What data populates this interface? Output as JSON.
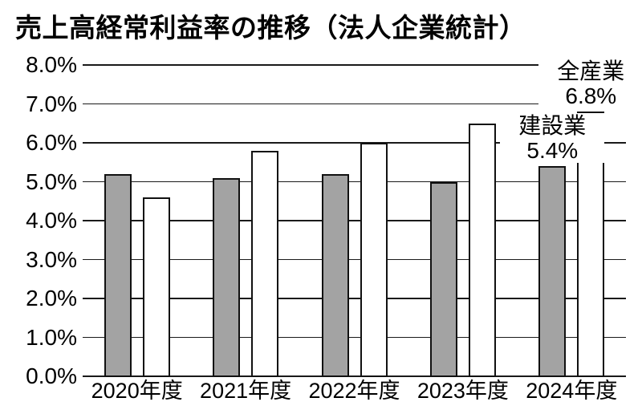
{
  "title": "売上高経常利益率の推移（法人企業統計）",
  "chart_data": {
    "type": "bar",
    "categories": [
      "2020年度",
      "2021年度",
      "2022年度",
      "2023年度",
      "2024年度"
    ],
    "series": [
      {
        "name": "建設業",
        "key": "construction",
        "fill": "#a3a3a3",
        "values": [
          5.2,
          5.1,
          5.2,
          5.0,
          5.4
        ]
      },
      {
        "name": "全産業",
        "key": "all-industries",
        "fill": "#ffffff",
        "values": [
          4.6,
          5.8,
          6.0,
          6.5,
          6.8
        ]
      }
    ],
    "ylim": [
      0,
      8
    ],
    "ytick_step": 1,
    "ytick_labels": [
      "0.0%",
      "1.0%",
      "2.0%",
      "3.0%",
      "4.0%",
      "5.0%",
      "6.0%",
      "7.0%",
      "8.0%"
    ],
    "grid": true,
    "legend": "none",
    "annotations": [
      {
        "series_index": 1,
        "category_index": 4,
        "name": "全産業",
        "value_label": "6.8%"
      },
      {
        "series_index": 0,
        "category_index": 4,
        "name": "建設業",
        "value_label": "5.4%"
      }
    ]
  },
  "colors": {
    "bar_gray": "#a3a3a3",
    "bar_white": "#ffffff",
    "axis": "#1a1a1a",
    "text": "#000000",
    "background": "#ffffff"
  }
}
